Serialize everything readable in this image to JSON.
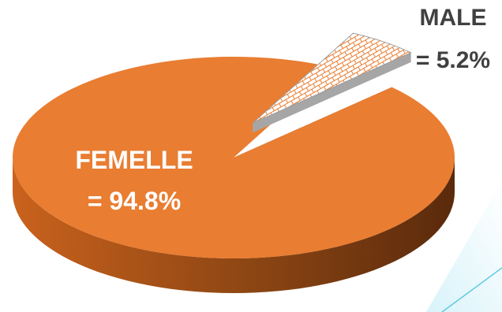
{
  "chart_data": {
    "type": "pie",
    "style": "3d-exploded",
    "slices": [
      {
        "label": "FEMELLE",
        "value": 94.8,
        "display": "= 94.8%",
        "color": "#e97d32",
        "text_color": "#ffffff"
      },
      {
        "label": "MALE",
        "value": 5.2,
        "display": "= 5.2%",
        "color": "#ffffff",
        "pattern": "brick",
        "pattern_color": "#e97d32",
        "text_color": "#404040"
      }
    ],
    "title": "",
    "legend": "none"
  },
  "decoration": {
    "accent_color": "#5ecae3"
  }
}
